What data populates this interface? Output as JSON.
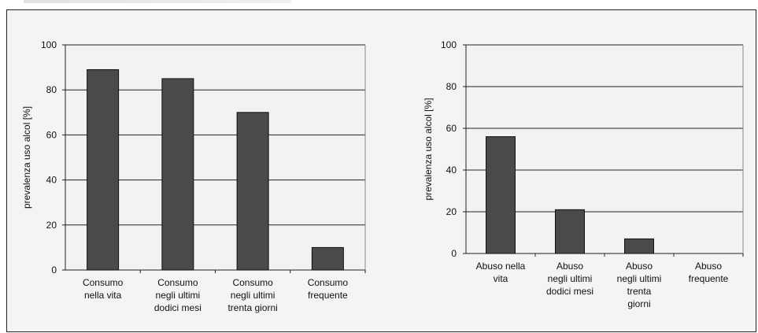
{
  "chart_data": [
    {
      "type": "bar",
      "categories": [
        [
          "Consumo",
          "nella vita"
        ],
        [
          "Consumo",
          "negli ultimi",
          "dodici mesi"
        ],
        [
          "Consumo",
          "negli ultimi",
          "trenta giorni"
        ],
        [
          "Consumo",
          "frequente"
        ]
      ],
      "values": [
        89,
        85,
        70,
        10
      ],
      "ylabel": "prevalenza uso alcol [%]",
      "ylim": [
        0,
        100
      ],
      "yticks": [
        0,
        20,
        40,
        60,
        80,
        100
      ],
      "grid": true,
      "bar_color": "#4a4a4a",
      "plot_bg": "#f2f2f2"
    },
    {
      "type": "bar",
      "categories": [
        [
          "Abuso nella",
          "vita"
        ],
        [
          "Abuso",
          "negli ultimi",
          "dodici mesi"
        ],
        [
          "Abuso",
          "negli ultimi",
          "trenta",
          "giorni"
        ],
        [
          "Abuso",
          "frequente"
        ]
      ],
      "values": [
        56,
        21,
        7,
        0
      ],
      "ylabel": "prevalenza uso alcol [%]",
      "ylim": [
        0,
        100
      ],
      "yticks": [
        0,
        20,
        40,
        60,
        80,
        100
      ],
      "grid": true,
      "bar_color": "#4a4a4a",
      "plot_bg": "#f2f2f2"
    }
  ]
}
